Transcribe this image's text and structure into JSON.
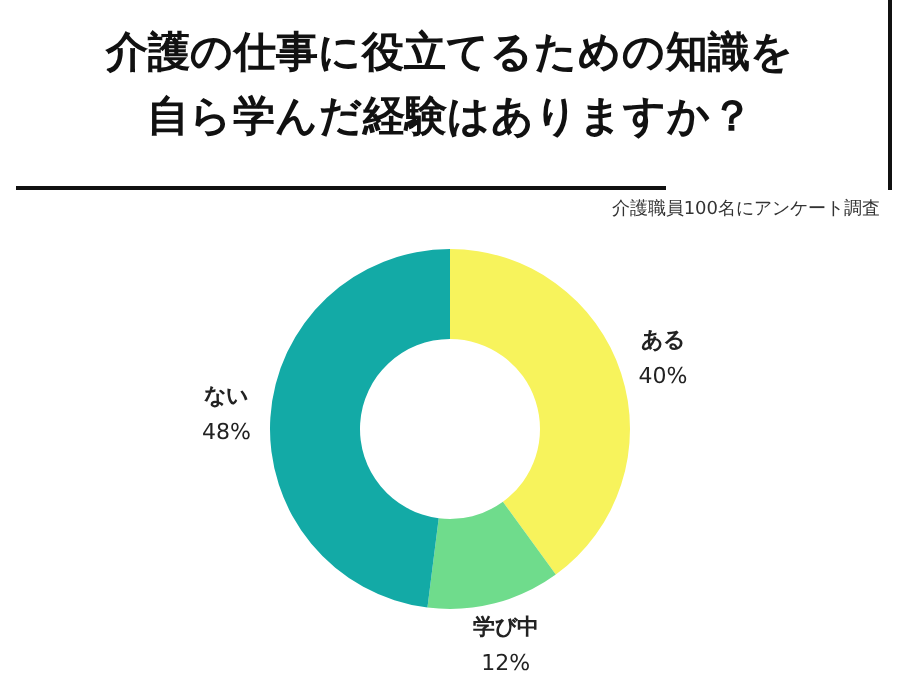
{
  "chart_data": {
    "type": "donut",
    "title": "介護の仕事に役立てるための知識を自ら学んだ経験はありますか？",
    "annotations": [
      "介護職員100名にアンケート調査"
    ],
    "categories": [
      "ある",
      "学び中",
      "ない"
    ],
    "values": [
      40,
      12,
      48
    ],
    "value_labels": [
      "40%",
      "12%",
      "48%"
    ],
    "colors": [
      "#f7f35c",
      "#6fdc8c",
      "#13aaa6"
    ],
    "legend": false
  }
}
